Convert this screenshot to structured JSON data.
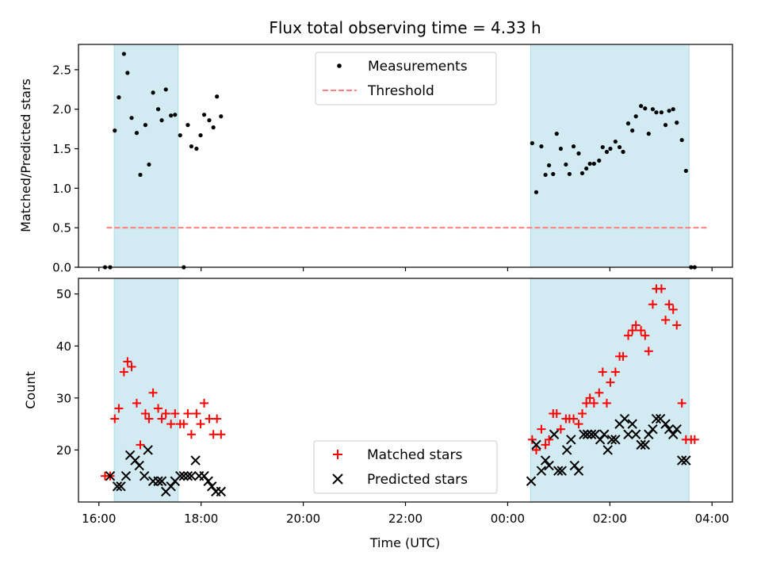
{
  "figure_title": "Flux total observing time = 4.33 h",
  "colors": {
    "measurement": "#000000",
    "threshold": "#ff7f7f",
    "matched": "#ff0000",
    "predicted": "#000000",
    "span_fill": "#add8e6"
  },
  "chart_data": [
    {
      "type": "scatter",
      "title": "Flux total observing time = 4.33 h",
      "xlabel": "",
      "ylabel": "Matched/Predicted stars",
      "x_unit": "hours after 16:00 UTC",
      "xlim": [
        -0.4,
        12.4
      ],
      "ylim": [
        0,
        2.82
      ],
      "yticks": [
        0.0,
        0.5,
        1.0,
        1.5,
        2.0,
        2.5
      ],
      "ytick_labels": [
        "0.0",
        "0.5",
        "1.0",
        "1.5",
        "2.0",
        "2.5"
      ],
      "xticks": [
        0,
        2,
        4,
        6,
        8,
        10,
        12
      ],
      "grid": false,
      "legend_position": "upper center",
      "shaded_spans": [
        [
          0.3,
          1.55
        ],
        [
          8.45,
          11.55
        ]
      ],
      "threshold": {
        "name": "Threshold",
        "y": 0.5,
        "x_range": [
          0.15,
          11.9
        ]
      },
      "series": [
        {
          "name": "Measurements",
          "points": [
            [
              0.12,
              0.0
            ],
            [
              0.22,
              0.0
            ],
            [
              0.31,
              1.73
            ],
            [
              0.39,
              2.15
            ],
            [
              0.49,
              2.7
            ],
            [
              0.56,
              2.46
            ],
            [
              0.64,
              1.89
            ],
            [
              0.74,
              1.7
            ],
            [
              0.81,
              1.17
            ],
            [
              0.91,
              1.8
            ],
            [
              0.98,
              1.3
            ],
            [
              1.06,
              2.21
            ],
            [
              1.16,
              2.0
            ],
            [
              1.23,
              1.86
            ],
            [
              1.31,
              2.25
            ],
            [
              1.41,
              1.92
            ],
            [
              1.49,
              1.93
            ],
            [
              1.59,
              1.67
            ],
            [
              1.66,
              0.0
            ],
            [
              1.74,
              1.8
            ],
            [
              1.81,
              1.53
            ],
            [
              1.91,
              1.5
            ],
            [
              1.99,
              1.67
            ],
            [
              2.06,
              1.93
            ],
            [
              2.16,
              1.86
            ],
            [
              2.24,
              1.77
            ],
            [
              2.31,
              2.16
            ],
            [
              2.39,
              1.91
            ],
            [
              8.48,
              1.57
            ],
            [
              8.56,
              0.95
            ],
            [
              8.66,
              1.53
            ],
            [
              8.74,
              1.17
            ],
            [
              8.81,
              1.29
            ],
            [
              8.89,
              1.18
            ],
            [
              8.96,
              1.69
            ],
            [
              9.04,
              1.5
            ],
            [
              9.14,
              1.3
            ],
            [
              9.21,
              1.18
            ],
            [
              9.29,
              1.53
            ],
            [
              9.39,
              1.44
            ],
            [
              9.46,
              1.19
            ],
            [
              9.54,
              1.25
            ],
            [
              9.61,
              1.31
            ],
            [
              9.69,
              1.31
            ],
            [
              9.79,
              1.35
            ],
            [
              9.86,
              1.52
            ],
            [
              9.94,
              1.46
            ],
            [
              10.01,
              1.5
            ],
            [
              10.11,
              1.59
            ],
            [
              10.19,
              1.52
            ],
            [
              10.26,
              1.46
            ],
            [
              10.36,
              1.82
            ],
            [
              10.44,
              1.73
            ],
            [
              10.51,
              1.91
            ],
            [
              10.61,
              2.04
            ],
            [
              10.69,
              2.01
            ],
            [
              10.76,
              1.69
            ],
            [
              10.84,
              2.0
            ],
            [
              10.91,
              1.96
            ],
            [
              11.01,
              1.96
            ],
            [
              11.09,
              1.8
            ],
            [
              11.16,
              1.98
            ],
            [
              11.24,
              2.0
            ],
            [
              11.31,
              1.83
            ],
            [
              11.41,
              1.61
            ],
            [
              11.49,
              1.22
            ],
            [
              11.59,
              0.0
            ],
            [
              11.66,
              0.0
            ]
          ]
        }
      ]
    },
    {
      "type": "scatter",
      "title": "",
      "xlabel": "Time (UTC)",
      "ylabel": "Count",
      "x_unit": "hours after 16:00 UTC",
      "xlim": [
        -0.4,
        12.4
      ],
      "ylim": [
        10,
        53
      ],
      "yticks": [
        20,
        30,
        40,
        50
      ],
      "ytick_labels": [
        "20",
        "30",
        "40",
        "50"
      ],
      "xticks": [
        0,
        2,
        4,
        6,
        8,
        10,
        12
      ],
      "xtick_labels": [
        "16:00",
        "18:00",
        "20:00",
        "22:00",
        "00:00",
        "02:00",
        "04:00"
      ],
      "grid": false,
      "legend_position": "lower center",
      "shaded_spans": [
        [
          0.3,
          1.55
        ],
        [
          8.45,
          11.55
        ]
      ],
      "series": [
        {
          "name": "Matched stars",
          "marker": "plus",
          "points": [
            [
              0.12,
              15
            ],
            [
              0.22,
              15
            ],
            [
              0.31,
              26
            ],
            [
              0.39,
              28
            ],
            [
              0.49,
              35
            ],
            [
              0.56,
              37
            ],
            [
              0.64,
              36
            ],
            [
              0.74,
              29
            ],
            [
              0.81,
              21
            ],
            [
              0.91,
              27
            ],
            [
              0.98,
              26
            ],
            [
              1.06,
              31
            ],
            [
              1.16,
              28
            ],
            [
              1.23,
              26
            ],
            [
              1.31,
              27
            ],
            [
              1.41,
              25
            ],
            [
              1.49,
              27
            ],
            [
              1.59,
              25
            ],
            [
              1.66,
              25
            ],
            [
              1.74,
              27
            ],
            [
              1.81,
              23
            ],
            [
              1.91,
              27
            ],
            [
              1.99,
              25
            ],
            [
              2.06,
              29
            ],
            [
              2.16,
              26
            ],
            [
              2.24,
              23
            ],
            [
              2.31,
              26
            ],
            [
              2.39,
              23
            ],
            [
              8.48,
              22
            ],
            [
              8.56,
              20
            ],
            [
              8.66,
              24
            ],
            [
              8.74,
              21
            ],
            [
              8.81,
              22
            ],
            [
              8.89,
              27
            ],
            [
              8.96,
              27
            ],
            [
              9.04,
              24
            ],
            [
              9.14,
              26
            ],
            [
              9.21,
              26
            ],
            [
              9.29,
              26
            ],
            [
              9.39,
              25
            ],
            [
              9.46,
              27
            ],
            [
              9.54,
              29
            ],
            [
              9.61,
              30
            ],
            [
              9.69,
              29
            ],
            [
              9.79,
              31
            ],
            [
              9.86,
              35
            ],
            [
              9.94,
              29
            ],
            [
              10.01,
              33
            ],
            [
              10.11,
              35
            ],
            [
              10.19,
              38
            ],
            [
              10.26,
              38
            ],
            [
              10.36,
              42
            ],
            [
              10.44,
              43
            ],
            [
              10.51,
              44
            ],
            [
              10.61,
              43
            ],
            [
              10.69,
              42
            ],
            [
              10.76,
              39
            ],
            [
              10.84,
              48
            ],
            [
              10.91,
              51
            ],
            [
              11.01,
              51
            ],
            [
              11.09,
              45
            ],
            [
              11.16,
              48
            ],
            [
              11.24,
              47
            ],
            [
              11.31,
              44
            ],
            [
              11.41,
              29
            ],
            [
              11.49,
              22
            ],
            [
              11.59,
              22
            ],
            [
              11.66,
              22
            ]
          ]
        },
        {
          "name": "Predicted stars",
          "marker": "x",
          "points": [
            [
              0.22,
              15
            ],
            [
              0.36,
              13
            ],
            [
              0.43,
              13
            ],
            [
              0.53,
              15
            ],
            [
              0.61,
              19
            ],
            [
              0.71,
              18
            ],
            [
              0.79,
              17
            ],
            [
              0.89,
              15
            ],
            [
              0.96,
              20
            ],
            [
              1.06,
              14
            ],
            [
              1.16,
              14
            ],
            [
              1.23,
              14
            ],
            [
              1.31,
              12
            ],
            [
              1.41,
              13
            ],
            [
              1.49,
              14
            ],
            [
              1.59,
              15
            ],
            [
              1.66,
              15
            ],
            [
              1.74,
              15
            ],
            [
              1.81,
              15
            ],
            [
              1.89,
              18
            ],
            [
              1.96,
              15
            ],
            [
              2.06,
              15
            ],
            [
              2.14,
              14
            ],
            [
              2.21,
              13
            ],
            [
              2.29,
              12
            ],
            [
              2.39,
              12
            ],
            [
              8.46,
              14
            ],
            [
              8.56,
              21
            ],
            [
              8.66,
              16
            ],
            [
              8.74,
              18
            ],
            [
              8.81,
              17
            ],
            [
              8.91,
              23
            ],
            [
              8.99,
              16
            ],
            [
              9.06,
              16
            ],
            [
              9.16,
              20
            ],
            [
              9.24,
              22
            ],
            [
              9.31,
              17
            ],
            [
              9.39,
              16
            ],
            [
              9.49,
              23
            ],
            [
              9.56,
              23
            ],
            [
              9.64,
              23
            ],
            [
              9.71,
              23
            ],
            [
              9.81,
              22
            ],
            [
              9.89,
              23
            ],
            [
              9.96,
              20
            ],
            [
              10.04,
              22
            ],
            [
              10.11,
              22
            ],
            [
              10.19,
              25
            ],
            [
              10.29,
              26
            ],
            [
              10.36,
              23
            ],
            [
              10.44,
              25
            ],
            [
              10.51,
              23
            ],
            [
              10.61,
              21
            ],
            [
              10.69,
              21
            ],
            [
              10.76,
              23
            ],
            [
              10.84,
              24
            ],
            [
              10.91,
              26
            ],
            [
              10.99,
              26
            ],
            [
              11.09,
              25
            ],
            [
              11.16,
              24
            ],
            [
              11.24,
              23
            ],
            [
              11.31,
              24
            ],
            [
              11.41,
              18
            ],
            [
              11.49,
              18
            ]
          ]
        }
      ]
    }
  ]
}
